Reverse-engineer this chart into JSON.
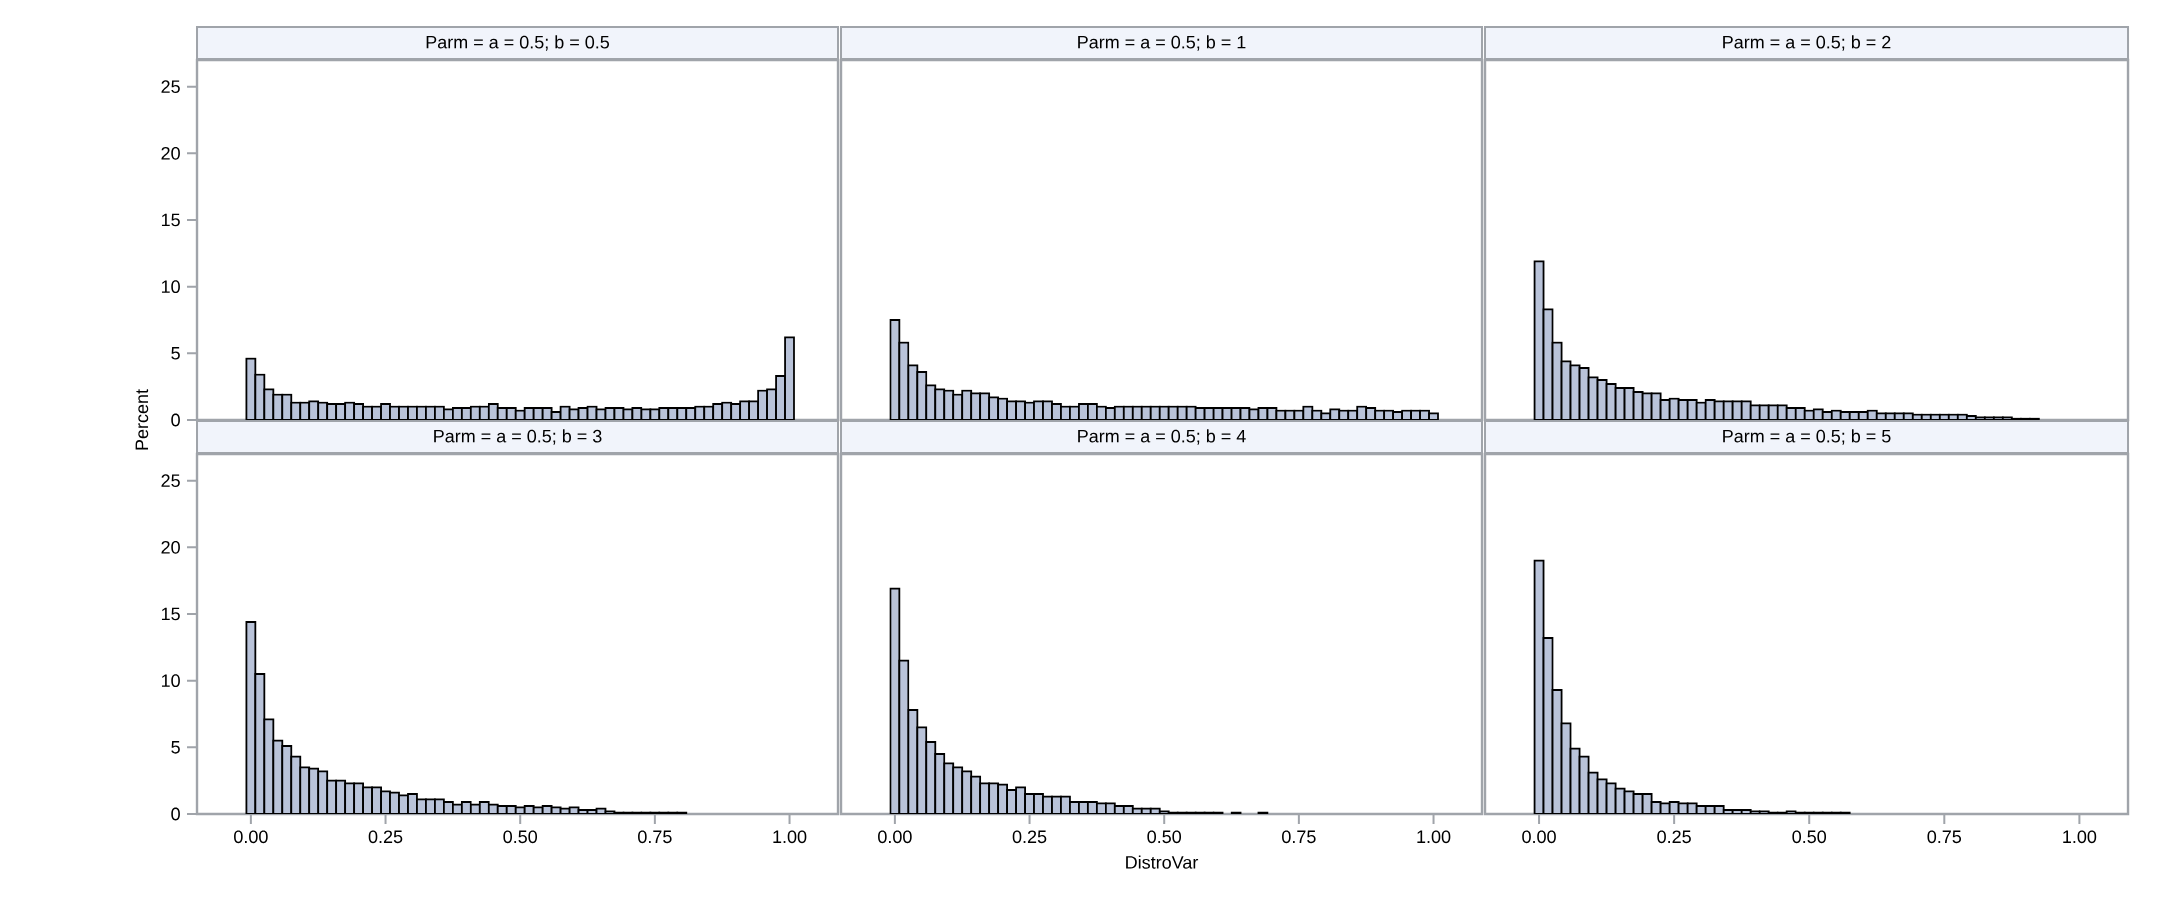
{
  "chart_data": [
    {
      "type": "histogram",
      "title": "Parm = a = 0.5; b = 0.5",
      "ylabel": "Percent",
      "color": "#b9c3d9",
      "tick_labels": "y",
      "xlim": [
        -0.1,
        1.09
      ],
      "ylim": [
        0,
        27
      ],
      "yticks": [
        0,
        5,
        10,
        15,
        20,
        25
      ],
      "bins": [
        -0.0083,
        0.0083,
        0.025,
        0.0417,
        0.0583,
        0.075,
        0.0917,
        0.1083,
        0.125,
        0.1417,
        0.1583,
        0.175,
        0.1917,
        0.2083,
        0.225,
        0.2417,
        0.2583,
        0.275,
        0.2917,
        0.3083,
        0.325,
        0.3417,
        0.3583,
        0.375,
        0.3917,
        0.4083,
        0.425,
        0.4417,
        0.4583,
        0.475,
        0.4917,
        0.5083,
        0.525,
        0.5417,
        0.5583,
        0.575,
        0.5917,
        0.6083,
        0.625,
        0.6417,
        0.6583,
        0.675,
        0.6917,
        0.7083,
        0.725,
        0.7417,
        0.7583,
        0.775,
        0.7917,
        0.8083,
        0.825,
        0.8417,
        0.8583,
        0.875,
        0.8917,
        0.9083,
        0.925,
        0.9417,
        0.9583,
        0.975,
        0.9917,
        1.0083
      ],
      "values": [
        4.6,
        3.4,
        2.3,
        1.9,
        1.9,
        1.3,
        1.3,
        1.4,
        1.3,
        1.2,
        1.2,
        1.3,
        1.2,
        1.0,
        1.0,
        1.2,
        1.0,
        1.0,
        1.0,
        1.0,
        1.0,
        1.0,
        0.8,
        0.9,
        0.9,
        1.0,
        1.0,
        1.2,
        0.9,
        0.9,
        0.7,
        0.9,
        0.9,
        0.9,
        0.6,
        1.0,
        0.8,
        0.9,
        1.0,
        0.8,
        0.9,
        0.9,
        0.8,
        0.9,
        0.8,
        0.8,
        0.9,
        0.9,
        0.9,
        0.9,
        1.0,
        1.0,
        1.2,
        1.3,
        1.2,
        1.4,
        1.4,
        2.2,
        2.3,
        3.3,
        6.2
      ]
    },
    {
      "type": "histogram",
      "title": "Parm = a = 0.5; b = 1",
      "color": "#b9c3d9",
      "tick_labels": false,
      "xlim": [
        -0.1,
        1.09
      ],
      "ylim": [
        0,
        27
      ],
      "bins": [
        -0.0083,
        0.0083,
        0.025,
        0.0417,
        0.0583,
        0.075,
        0.0917,
        0.1083,
        0.125,
        0.1417,
        0.1583,
        0.175,
        0.1917,
        0.2083,
        0.225,
        0.2417,
        0.2583,
        0.275,
        0.2917,
        0.3083,
        0.325,
        0.3417,
        0.3583,
        0.375,
        0.3917,
        0.4083,
        0.425,
        0.4417,
        0.4583,
        0.475,
        0.4917,
        0.5083,
        0.525,
        0.5417,
        0.5583,
        0.575,
        0.5917,
        0.6083,
        0.625,
        0.6417,
        0.6583,
        0.675,
        0.6917,
        0.7083,
        0.725,
        0.7417,
        0.7583,
        0.775,
        0.7917,
        0.8083,
        0.825,
        0.8417,
        0.8583,
        0.875,
        0.8917,
        0.9083,
        0.925,
        0.9417,
        0.9583,
        0.975,
        0.9917,
        1.0083
      ],
      "values": [
        7.5,
        5.8,
        4.1,
        3.6,
        2.6,
        2.3,
        2.2,
        1.9,
        2.2,
        2.0,
        2.0,
        1.7,
        1.6,
        1.4,
        1.4,
        1.3,
        1.4,
        1.4,
        1.2,
        1.0,
        1.0,
        1.2,
        1.2,
        1.0,
        0.9,
        1.0,
        1.0,
        1.0,
        1.0,
        1.0,
        1.0,
        1.0,
        1.0,
        1.0,
        0.9,
        0.9,
        0.9,
        0.9,
        0.9,
        0.9,
        0.8,
        0.9,
        0.9,
        0.7,
        0.7,
        0.7,
        1.0,
        0.7,
        0.5,
        0.8,
        0.7,
        0.7,
        1.0,
        0.9,
        0.7,
        0.7,
        0.6,
        0.7,
        0.7,
        0.7,
        0.5
      ]
    },
    {
      "type": "histogram",
      "title": "Parm = a = 0.5; b = 2",
      "color": "#b9c3d9",
      "tick_labels": false,
      "xlim": [
        -0.1,
        1.09
      ],
      "ylim": [
        0,
        27
      ],
      "bins": [
        -0.0083,
        0.0083,
        0.025,
        0.0417,
        0.0583,
        0.075,
        0.0917,
        0.1083,
        0.125,
        0.1417,
        0.1583,
        0.175,
        0.1917,
        0.2083,
        0.225,
        0.2417,
        0.2583,
        0.275,
        0.2917,
        0.3083,
        0.325,
        0.3417,
        0.3583,
        0.375,
        0.3917,
        0.4083,
        0.425,
        0.4417,
        0.4583,
        0.475,
        0.4917,
        0.5083,
        0.525,
        0.5417,
        0.5583,
        0.575,
        0.5917,
        0.6083,
        0.625,
        0.6417,
        0.6583,
        0.675,
        0.6917,
        0.7083,
        0.725,
        0.7417,
        0.7583,
        0.775,
        0.7917,
        0.8083,
        0.825,
        0.8417,
        0.8583,
        0.875,
        0.8917,
        0.9083,
        0.925
      ],
      "values": [
        11.9,
        8.3,
        5.8,
        4.4,
        4.1,
        3.9,
        3.2,
        3.0,
        2.7,
        2.4,
        2.4,
        2.1,
        2.0,
        2.0,
        1.5,
        1.6,
        1.5,
        1.5,
        1.3,
        1.5,
        1.4,
        1.4,
        1.4,
        1.4,
        1.1,
        1.1,
        1.1,
        1.1,
        0.9,
        0.9,
        0.7,
        0.8,
        0.6,
        0.7,
        0.6,
        0.6,
        0.6,
        0.7,
        0.5,
        0.5,
        0.5,
        0.5,
        0.4,
        0.4,
        0.4,
        0.4,
        0.4,
        0.4,
        0.3,
        0.2,
        0.2,
        0.2,
        0.2,
        0.1,
        0.1,
        0.1
      ]
    },
    {
      "type": "histogram",
      "title": "Parm = a = 0.5; b = 3",
      "color": "#b9c3d9",
      "xlim": [
        -0.1,
        1.09
      ],
      "ylim": [
        0,
        27
      ],
      "xticks": [
        {
          "value": 0,
          "label": "0.00"
        },
        {
          "value": 0.25,
          "label": "0.25"
        },
        {
          "value": 0.5,
          "label": "0.50"
        },
        {
          "value": 0.75,
          "label": "0.75"
        },
        {
          "value": 1,
          "label": "1.00"
        }
      ],
      "yticks": [
        0,
        5,
        10,
        15,
        20,
        25
      ],
      "bins": [
        -0.0083,
        0.0083,
        0.025,
        0.0417,
        0.0583,
        0.075,
        0.0917,
        0.1083,
        0.125,
        0.1417,
        0.1583,
        0.175,
        0.1917,
        0.2083,
        0.225,
        0.2417,
        0.2583,
        0.275,
        0.2917,
        0.3083,
        0.325,
        0.3417,
        0.3583,
        0.375,
        0.3917,
        0.4083,
        0.425,
        0.4417,
        0.4583,
        0.475,
        0.4917,
        0.5083,
        0.525,
        0.5417,
        0.5583,
        0.575,
        0.5917,
        0.6083,
        0.625,
        0.6417,
        0.6583,
        0.675,
        0.6917,
        0.7083,
        0.725,
        0.7417,
        0.7583,
        0.775,
        0.7917,
        0.8083
      ],
      "values": [
        14.4,
        10.5,
        7.1,
        5.5,
        5.1,
        4.3,
        3.5,
        3.4,
        3.2,
        2.5,
        2.5,
        2.3,
        2.3,
        2.0,
        2.0,
        1.7,
        1.6,
        1.4,
        1.5,
        1.1,
        1.1,
        1.1,
        0.9,
        0.7,
        0.9,
        0.7,
        0.9,
        0.7,
        0.6,
        0.6,
        0.5,
        0.6,
        0.5,
        0.6,
        0.5,
        0.4,
        0.5,
        0.3,
        0.3,
        0.4,
        0.2,
        0.1,
        0.1,
        0.1,
        0.1,
        0.1,
        0.1,
        0.1,
        0.1
      ]
    },
    {
      "type": "histogram",
      "title": "Parm = a = 0.5; b = 4",
      "xlabel": "DistroVar",
      "color": "#b9c3d9",
      "tick_labels": "x",
      "xlim": [
        -0.1,
        1.09
      ],
      "ylim": [
        0,
        27
      ],
      "xticks": [
        {
          "value": 0,
          "label": "0.00"
        },
        {
          "value": 0.25,
          "label": "0.25"
        },
        {
          "value": 0.5,
          "label": "0.50"
        },
        {
          "value": 0.75,
          "label": "0.75"
        },
        {
          "value": 1,
          "label": "1.00"
        }
      ],
      "bins": [
        -0.0083,
        0.0083,
        0.025,
        0.0417,
        0.0583,
        0.075,
        0.0917,
        0.1083,
        0.125,
        0.1417,
        0.1583,
        0.175,
        0.1917,
        0.2083,
        0.225,
        0.2417,
        0.2583,
        0.275,
        0.2917,
        0.3083,
        0.325,
        0.3417,
        0.3583,
        0.375,
        0.3917,
        0.4083,
        0.425,
        0.4417,
        0.4583,
        0.475,
        0.4917,
        0.5083,
        0.525,
        0.5417,
        0.5583,
        0.575,
        0.5917,
        0.6083,
        0.625,
        0.6417,
        0.6583,
        0.675,
        0.6917
      ],
      "values": [
        16.9,
        11.5,
        7.8,
        6.5,
        5.4,
        4.5,
        3.8,
        3.5,
        3.2,
        2.8,
        2.3,
        2.3,
        2.2,
        1.8,
        2.0,
        1.5,
        1.5,
        1.3,
        1.3,
        1.3,
        0.9,
        0.9,
        0.9,
        0.8,
        0.8,
        0.6,
        0.6,
        0.4,
        0.4,
        0.4,
        0.2,
        0.1,
        0.1,
        0.1,
        0.1,
        0.1,
        0.1,
        0,
        0.1,
        0,
        0,
        0.1
      ]
    },
    {
      "type": "histogram",
      "title": "Parm = a = 0.5; b = 5",
      "color": "#b9c3d9",
      "tick_labels": "x",
      "xlim": [
        -0.1,
        1.09
      ],
      "ylim": [
        0,
        27
      ],
      "xticks": [
        {
          "value": 0,
          "label": "0.00"
        },
        {
          "value": 0.25,
          "label": "0.25"
        },
        {
          "value": 0.5,
          "label": "0.50"
        },
        {
          "value": 0.75,
          "label": "0.75"
        },
        {
          "value": 1,
          "label": "1.00"
        }
      ],
      "bins": [
        -0.0083,
        0.0083,
        0.025,
        0.0417,
        0.0583,
        0.075,
        0.0917,
        0.1083,
        0.125,
        0.1417,
        0.1583,
        0.175,
        0.1917,
        0.2083,
        0.225,
        0.2417,
        0.2583,
        0.275,
        0.2917,
        0.3083,
        0.325,
        0.3417,
        0.3583,
        0.375,
        0.3917,
        0.4083,
        0.425,
        0.4417,
        0.4583,
        0.475,
        0.4917,
        0.5083,
        0.525,
        0.5417,
        0.5583,
        0.575
      ],
      "values": [
        19.0,
        13.2,
        9.3,
        6.8,
        4.9,
        4.3,
        3.1,
        2.6,
        2.3,
        1.9,
        1.7,
        1.5,
        1.5,
        0.9,
        0.8,
        0.9,
        0.8,
        0.8,
        0.6,
        0.6,
        0.6,
        0.3,
        0.3,
        0.3,
        0.2,
        0.2,
        0.1,
        0.1,
        0.2,
        0.1,
        0.1,
        0.1,
        0.1,
        0.1,
        0.1
      ]
    }
  ]
}
